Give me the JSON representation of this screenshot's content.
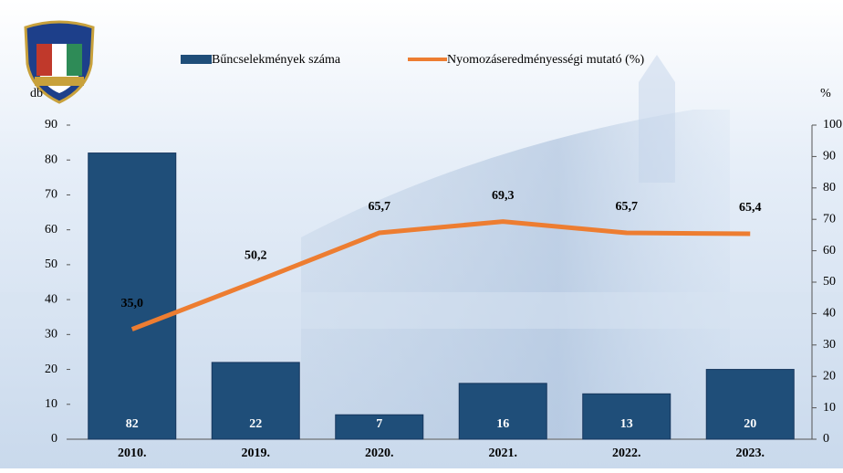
{
  "chart_data": {
    "type": "bar_line",
    "categories": [
      "2010.",
      "2019.",
      "2020.",
      "2021.",
      "2022.",
      "2023."
    ],
    "series": [
      {
        "name": "Bűncselekmények száma",
        "type": "bar",
        "color": "#1f4e79",
        "values": [
          82,
          22,
          7,
          16,
          13,
          20
        ]
      },
      {
        "name": "Nyomozáseredményességi mutató (%)",
        "type": "line",
        "axis": "y2",
        "color": "#ed7d31",
        "values": [
          35.0,
          50.2,
          65.7,
          69.3,
          65.7,
          65.4
        ],
        "value_labels": [
          "35,0",
          "50,2",
          "65,7",
          "69,3",
          "65,7",
          "65,4"
        ]
      }
    ],
    "y_label": "db",
    "y2_label": "%",
    "ylim": [
      0,
      90
    ],
    "yticks": [
      0,
      10,
      20,
      30,
      40,
      50,
      60,
      70,
      80,
      90
    ],
    "y2lim": [
      0,
      100
    ],
    "y2ticks": [
      0,
      10,
      20,
      30,
      40,
      50,
      60,
      70,
      80,
      90,
      100
    ]
  }
}
